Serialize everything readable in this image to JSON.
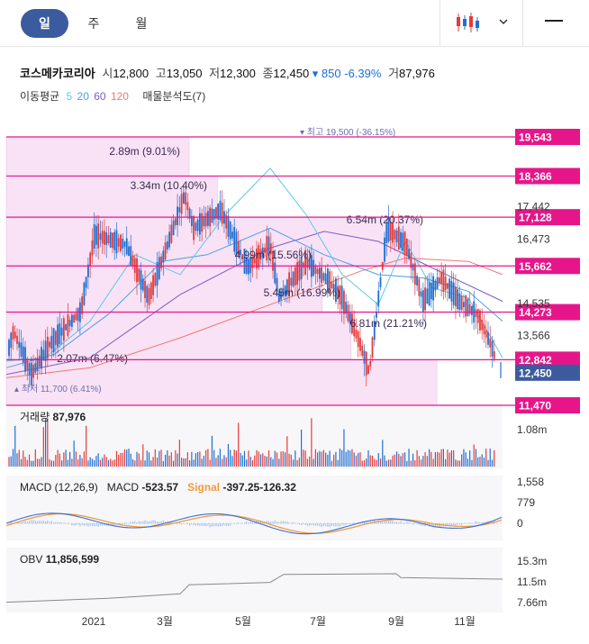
{
  "tabs": [
    {
      "label": "일",
      "active": true
    },
    {
      "label": "주",
      "active": false
    },
    {
      "label": "월",
      "active": false
    }
  ],
  "stock": {
    "name": "코스메카코리아",
    "open_label": "시",
    "open": "12,800",
    "high_label": "고",
    "high": "13,050",
    "low_label": "저",
    "low": "12,300",
    "close_label": "종",
    "close": "12,450",
    "change": "▾ 850",
    "change_pct": "-6.39%",
    "volume_label": "거",
    "volume": "87,976"
  },
  "ma": {
    "label": "이동평균",
    "periods": [
      {
        "label": "5",
        "color": "#5bc8e8"
      },
      {
        "label": "20",
        "color": "#4aa0e6"
      },
      {
        "label": "60",
        "color": "#7b5cc7"
      },
      {
        "label": "120",
        "color": "#f0796e"
      }
    ],
    "volume_profile_label": "매물분석도(7)"
  },
  "price_axis": [
    "17,442",
    "16,473",
    "14,535",
    "13,566"
  ],
  "price_levels": [
    {
      "label": "19,543",
      "value": 19543
    },
    {
      "label": "18,366",
      "value": 18366
    },
    {
      "label": "17,128",
      "value": 17128
    },
    {
      "label": "15,662",
      "value": 15662
    },
    {
      "label": "14,273",
      "value": 14273
    },
    {
      "label": "12,842",
      "value": 12842
    },
    {
      "label": "11,470",
      "value": 11470
    }
  ],
  "current_price_tag": "12,450",
  "high_annotation": "▾ 최고 19,500 (-36.15%)",
  "low_annotation": "▴ 최저 11,700 (6.41%)",
  "volume_profile": [
    {
      "label": "2.89m (9.01%)",
      "pct": 9.01
    },
    {
      "label": "3.34m (10.40%)",
      "pct": 10.4
    },
    {
      "label": "6.54m (20.37%)",
      "pct": 20.37
    },
    {
      "label": "4.99m (15.56%)",
      "pct": 15.56
    },
    {
      "label": "5.45m (16.99%)",
      "pct": 16.99
    },
    {
      "label": "6.81m (21.21%)",
      "pct": 21.21
    },
    {
      "label": "2.07m (6.47%)",
      "pct": 6.47
    }
  ],
  "volume_panel": {
    "title": "거래량",
    "value": "87,976",
    "axis": "1.08m"
  },
  "macd_panel": {
    "title": "MACD (12,26,9)",
    "macd_label": "MACD",
    "macd_value": "-523.57",
    "signal_label": "Signal",
    "signal_value": "-397.25",
    "hist_value": "-126.32",
    "axis": [
      "1,558",
      "779",
      "0"
    ]
  },
  "obv_panel": {
    "title": "OBV",
    "value": "11,856,599",
    "axis": [
      "15.3m",
      "11.5m",
      "7.66m"
    ]
  },
  "x_axis": [
    "2021",
    "3월",
    "5월",
    "7월",
    "9월",
    "11월"
  ],
  "colors": {
    "up": "#e33b3b",
    "down": "#1f6fd1",
    "accent": "#e6168a",
    "tab": "#3c5b9e",
    "signal": "#f39a3c",
    "macd": "#3b6fd4"
  }
}
